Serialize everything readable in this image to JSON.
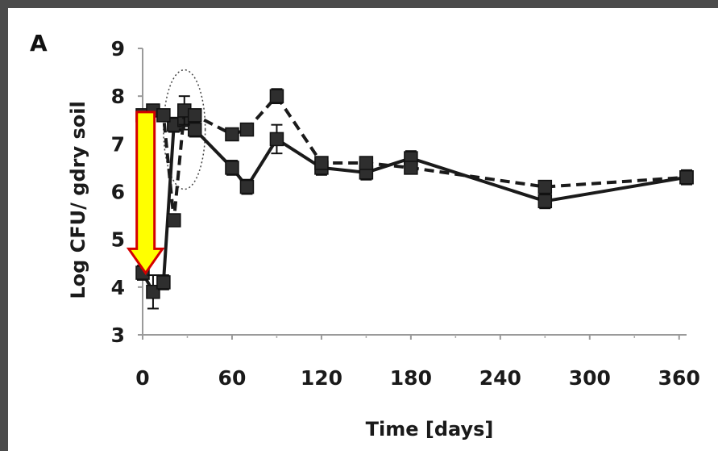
{
  "chart_data": {
    "type": "line",
    "panel_label": "A",
    "title": "",
    "xlabel": "Time [days]",
    "ylabel": "Log CFU/ gdry soil",
    "xlim": [
      0,
      365
    ],
    "ylim": [
      3,
      9
    ],
    "xticks": [
      0,
      60,
      120,
      180,
      240,
      300,
      360
    ],
    "yticks": [
      3,
      4,
      5,
      6,
      7,
      8,
      9
    ],
    "grid": false,
    "legend": "none",
    "series": [
      {
        "style": "solid",
        "color": "#1a1a1a",
        "x": [
          0,
          7,
          14,
          21,
          28,
          35,
          60,
          70,
          90,
          120,
          150,
          180,
          270,
          365
        ],
        "y": [
          4.3,
          3.9,
          4.1,
          7.4,
          7.5,
          7.3,
          6.5,
          6.1,
          7.1,
          6.5,
          6.4,
          6.7,
          5.8,
          6.3
        ],
        "err": [
          0.15,
          0.35,
          0.15,
          0.15,
          0.2,
          0.15,
          0.15,
          0.15,
          0.3,
          0.15,
          0.15,
          0.15,
          0.15,
          0.15
        ]
      },
      {
        "style": "dashed",
        "color": "#1a1a1a",
        "x": [
          0,
          7,
          14,
          21,
          28,
          35,
          60,
          70,
          90,
          120,
          150,
          180,
          270,
          365
        ],
        "y": [
          7.6,
          7.7,
          7.6,
          5.4,
          7.7,
          7.6,
          7.2,
          7.3,
          8.0,
          6.6,
          6.6,
          6.5,
          6.1,
          6.3
        ],
        "err": [
          0.1,
          0.1,
          0.1,
          0.1,
          0.3,
          0.1,
          0.1,
          0.1,
          0.15,
          0.1,
          0.1,
          0.1,
          0.1,
          0.1
        ]
      }
    ],
    "annotations": {
      "arrow": {
        "x": 2,
        "from_y": 7.6,
        "to_y": 4.6,
        "fill": "#ffff00",
        "stroke": "#d40000"
      },
      "ellipse": {
        "cx": 28,
        "cy": 7.3,
        "rx": 14,
        "ry": 1.25
      }
    }
  }
}
